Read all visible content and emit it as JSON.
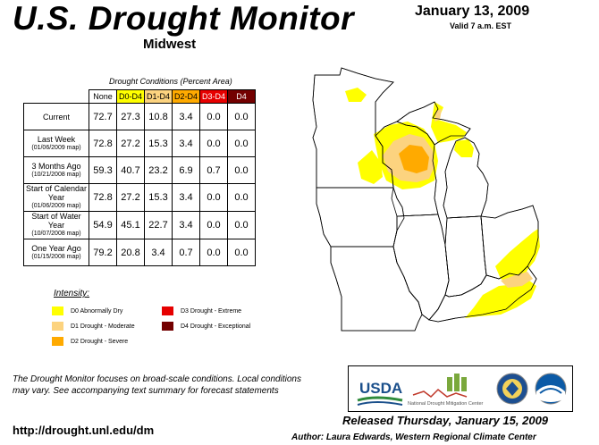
{
  "header": {
    "title": "U.S. Drought Monitor",
    "region": "Midwest",
    "date": "January 13, 2009",
    "valid": "Valid 7 a.m. EST"
  },
  "table": {
    "caption": "Drought Conditions (Percent Area)",
    "columns": [
      "None",
      "D0-D4",
      "D1-D4",
      "D2-D4",
      "D3-D4",
      "D4"
    ],
    "rows": [
      {
        "label": "Current",
        "sub": "",
        "values": [
          "72.7",
          "27.3",
          "10.8",
          "3.4",
          "0.0",
          "0.0"
        ]
      },
      {
        "label": "Last Week",
        "sub": "(01/06/2009 map)",
        "values": [
          "72.8",
          "27.2",
          "15.3",
          "3.4",
          "0.0",
          "0.0"
        ]
      },
      {
        "label": "3 Months Ago",
        "sub": "(10/21/2008 map)",
        "values": [
          "59.3",
          "40.7",
          "23.2",
          "6.9",
          "0.7",
          "0.0"
        ]
      },
      {
        "label": "Start of Calendar Year",
        "sub": "(01/06/2009 map)",
        "values": [
          "72.8",
          "27.2",
          "15.3",
          "3.4",
          "0.0",
          "0.0"
        ]
      },
      {
        "label": "Start of Water Year",
        "sub": "(10/07/2008 map)",
        "values": [
          "54.9",
          "45.1",
          "22.7",
          "3.4",
          "0.0",
          "0.0"
        ]
      },
      {
        "label": "One Year Ago",
        "sub": "(01/15/2008 map)",
        "values": [
          "79.2",
          "20.8",
          "3.4",
          "0.7",
          "0.0",
          "0.0"
        ]
      }
    ]
  },
  "legend": {
    "title": "Intensity:",
    "items": [
      {
        "label": "D0 Abnormally Dry",
        "color": "#ffff00"
      },
      {
        "label": "D1 Drought - Moderate",
        "color": "#fcd37f"
      },
      {
        "label": "D2 Drought - Severe",
        "color": "#ffaa00"
      },
      {
        "label": "D3 Drought - Extreme",
        "color": "#e60000"
      },
      {
        "label": "D4 Drought - Exceptional",
        "color": "#730000"
      }
    ]
  },
  "footer": {
    "note": "The Drought Monitor focuses on broad-scale conditions. Local conditions may vary. See accompanying text summary for forecast statements",
    "url": "http://drought.unl.edu/dm",
    "released": "Released Thursday, January 15, 2009",
    "author": "Author: Laura Edwards, Western Regional Climate Center"
  },
  "logos": {
    "usda": "USDA",
    "ndmc": "National Drought Mitigation Center"
  }
}
